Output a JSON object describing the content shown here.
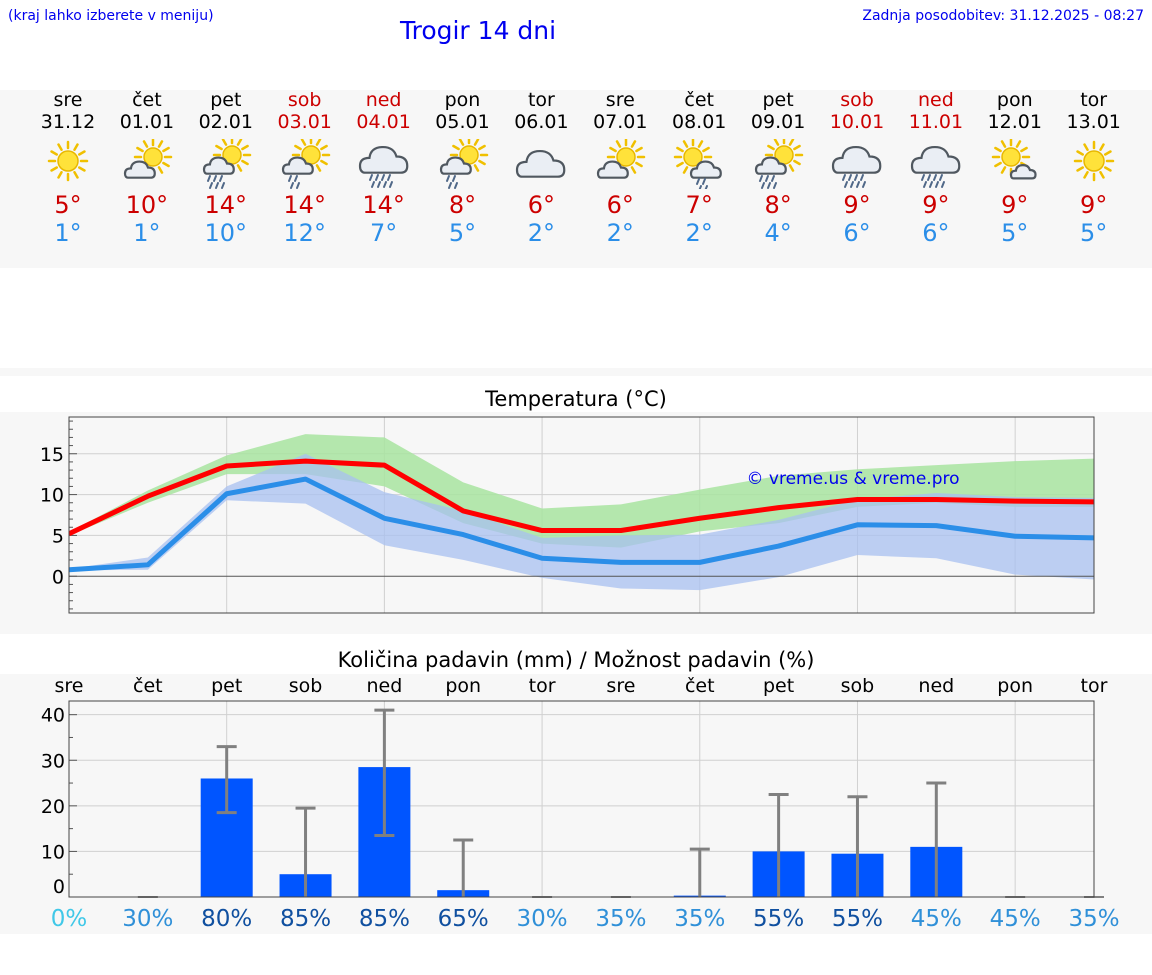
{
  "header": {
    "hint": "(kraj lahko izberete v meniju)",
    "title": "Trogir 14 dni",
    "updated": "Zadnja posodobitev: 31.12.2025 - 08:27"
  },
  "days": [
    {
      "name": "sre",
      "date": "31.12",
      "weekend": false,
      "icon": "sunny-icon",
      "tmax": "5°",
      "tmin": "1°"
    },
    {
      "name": "čet",
      "date": "01.01",
      "weekend": false,
      "icon": "partly-cloudy-icon",
      "tmax": "10°",
      "tmin": "1°"
    },
    {
      "name": "pet",
      "date": "02.01",
      "weekend": false,
      "icon": "sun-rain-icon",
      "tmax": "14°",
      "tmin": "10°"
    },
    {
      "name": "sob",
      "date": "03.01",
      "weekend": true,
      "icon": "sun-light-rain-icon",
      "tmax": "14°",
      "tmin": "12°"
    },
    {
      "name": "ned",
      "date": "04.01",
      "weekend": true,
      "icon": "cloud-rain-icon",
      "tmax": "14°",
      "tmin": "7°"
    },
    {
      "name": "pon",
      "date": "05.01",
      "weekend": false,
      "icon": "sun-light-rain-icon",
      "tmax": "8°",
      "tmin": "5°"
    },
    {
      "name": "tor",
      "date": "06.01",
      "weekend": false,
      "icon": "cloudy-icon",
      "tmax": "6°",
      "tmin": "2°"
    },
    {
      "name": "sre",
      "date": "07.01",
      "weekend": false,
      "icon": "partly-cloudy-icon",
      "tmax": "6°",
      "tmin": "2°"
    },
    {
      "name": "čet",
      "date": "08.01",
      "weekend": false,
      "icon": "sun-cloud-rain-icon",
      "tmax": "7°",
      "tmin": "2°"
    },
    {
      "name": "pet",
      "date": "09.01",
      "weekend": false,
      "icon": "sun-rain-icon",
      "tmax": "8°",
      "tmin": "4°"
    },
    {
      "name": "sob",
      "date": "10.01",
      "weekend": true,
      "icon": "cloud-rain-icon",
      "tmax": "9°",
      "tmin": "6°"
    },
    {
      "name": "ned",
      "date": "11.01",
      "weekend": true,
      "icon": "cloud-rain-icon",
      "tmax": "9°",
      "tmin": "6°"
    },
    {
      "name": "pon",
      "date": "12.01",
      "weekend": false,
      "icon": "sun-small-cloud-icon",
      "tmax": "9°",
      "tmin": "5°"
    },
    {
      "name": "tor",
      "date": "13.01",
      "weekend": false,
      "icon": "sunny-icon",
      "tmax": "9°",
      "tmin": "5°"
    }
  ],
  "colors": {
    "max_line": "#ff0000",
    "min_line": "#2b8ee8",
    "max_band": "#a8e4a0",
    "min_band": "#a8c0f0",
    "overlap_band": "#72c0a8",
    "bar": "#0055ff",
    "err": "#808080",
    "weekend_text": "#cc0000",
    "precip_low": "#40c8e8",
    "precip_mid": "#3090d8",
    "precip_high": "#1050a0"
  },
  "chart_data": [
    {
      "type": "line",
      "title": "Temperatura (°C)",
      "watermark": "© vreme.us & vreme.pro",
      "x": [
        0,
        1,
        2,
        3,
        4,
        5,
        6,
        7,
        8,
        9,
        10,
        11,
        12,
        13
      ],
      "x_range": [
        0,
        13
      ],
      "ylim": [
        -4.5,
        19.5
      ],
      "yticks": [
        0,
        5,
        10,
        15
      ],
      "series": [
        {
          "name": "max",
          "values": [
            5.2,
            9.8,
            13.5,
            14.1,
            13.6,
            8.0,
            5.6,
            5.6,
            7.1,
            8.4,
            9.4,
            9.4,
            9.2,
            9.1
          ]
        },
        {
          "name": "min",
          "values": [
            0.8,
            1.4,
            10.1,
            11.9,
            7.1,
            5.1,
            2.2,
            1.7,
            1.7,
            3.7,
            6.3,
            6.2,
            4.9,
            4.7
          ]
        }
      ],
      "bands": [
        {
          "name": "max-range",
          "low": [
            5.0,
            9.0,
            12.5,
            12.5,
            11.0,
            6.5,
            4.0,
            3.5,
            5.5,
            6.5,
            8.5,
            9.0,
            8.5,
            8.5
          ],
          "high": [
            5.4,
            10.5,
            14.8,
            17.4,
            17.0,
            11.5,
            8.3,
            8.8,
            10.6,
            12.3,
            13.1,
            13.6,
            14.1,
            14.4
          ]
        },
        {
          "name": "min-range",
          "low": [
            0.7,
            0.8,
            9.3,
            8.9,
            3.8,
            2.0,
            -0.2,
            -1.5,
            -1.7,
            -0.1,
            2.6,
            2.2,
            0.2,
            -0.4
          ],
          "high": [
            0.9,
            2.3,
            11.0,
            15.0,
            10.3,
            8.0,
            4.7,
            5.0,
            5.1,
            6.9,
            9.4,
            10.2,
            9.7,
            9.6
          ]
        }
      ]
    },
    {
      "type": "bar",
      "title": "Količina padavin (mm) / Možnost padavin (%)",
      "categories": [
        "sre",
        "čet",
        "pet",
        "sob",
        "ned",
        "pon",
        "tor",
        "sre",
        "čet",
        "pet",
        "sob",
        "ned",
        "pon",
        "tor"
      ],
      "values": [
        0,
        0,
        26,
        5,
        28.5,
        1.5,
        0,
        0,
        0.3,
        10,
        9.5,
        11,
        0,
        0
      ],
      "err_low": [
        0,
        0,
        18.5,
        0,
        13.5,
        0,
        0,
        0,
        0,
        0,
        0,
        0,
        0,
        0
      ],
      "err_high": [
        0,
        0,
        33,
        19.5,
        41,
        12.5,
        0,
        0,
        10.5,
        22.5,
        22,
        25,
        0,
        0
      ],
      "ylim": [
        0,
        43
      ],
      "yticks": [
        0,
        10,
        20,
        30,
        40
      ],
      "probability": [
        "0%",
        "30%",
        "80%",
        "85%",
        "85%",
        "65%",
        "30%",
        "35%",
        "35%",
        "55%",
        "55%",
        "45%",
        "45%",
        "35%"
      ]
    }
  ]
}
